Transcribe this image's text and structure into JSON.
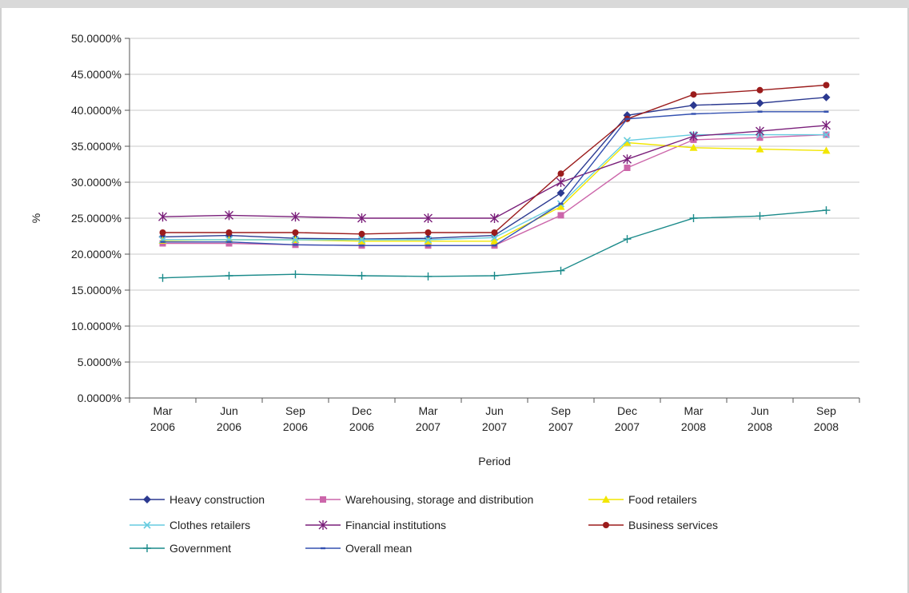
{
  "chart_data": {
    "type": "line",
    "title": "",
    "xlabel": "Period",
    "ylabel": "%",
    "ylim": [
      0,
      50
    ],
    "yticks": [
      "0.0000%",
      "5.0000%",
      "10.0000%",
      "15.0000%",
      "20.0000%",
      "25.0000%",
      "30.0000%",
      "35.0000%",
      "40.0000%",
      "45.0000%",
      "50.0000%"
    ],
    "categories": [
      [
        "Mar",
        "2006"
      ],
      [
        "Jun",
        "2006"
      ],
      [
        "Sep",
        "2006"
      ],
      [
        "Dec",
        "2006"
      ],
      [
        "Mar",
        "2007"
      ],
      [
        "Jun",
        "2007"
      ],
      [
        "Sep",
        "2007"
      ],
      [
        "Dec",
        "2007"
      ],
      [
        "Mar",
        "2008"
      ],
      [
        "Jun",
        "2008"
      ],
      [
        "Sep",
        "2008"
      ]
    ],
    "grid": true,
    "legend_position": "bottom",
    "series": [
      {
        "name": "Heavy construction",
        "color": "#2b3990",
        "marker": "diamond",
        "values": [
          22.4,
          22.6,
          22.2,
          22.1,
          22.2,
          22.6,
          28.5,
          39.3,
          40.7,
          41.0,
          41.8
        ]
      },
      {
        "name": "Warehousing, storage and distribution",
        "color": "#cc66aa",
        "marker": "square",
        "values": [
          21.5,
          21.5,
          21.3,
          21.2,
          21.2,
          21.2,
          25.4,
          32.0,
          35.9,
          36.2,
          36.6
        ]
      },
      {
        "name": "Food retailers",
        "color": "#f2e600",
        "marker": "triangle",
        "values": [
          21.9,
          22.0,
          22.0,
          21.8,
          21.8,
          21.8,
          26.6,
          35.5,
          34.8,
          34.6,
          34.4
        ]
      },
      {
        "name": "Clothes retailers",
        "color": "#66cce0",
        "marker": "x",
        "values": [
          22.0,
          22.0,
          22.0,
          22.0,
          22.0,
          22.3,
          27.0,
          35.8,
          36.6,
          36.6,
          36.6
        ]
      },
      {
        "name": "Financial institutions",
        "color": "#7a1f7a",
        "marker": "star",
        "values": [
          25.2,
          25.4,
          25.2,
          25.0,
          25.0,
          25.0,
          30.0,
          33.2,
          36.4,
          37.1,
          37.9
        ]
      },
      {
        "name": "Business services",
        "color": "#9b1c1c",
        "marker": "circle",
        "values": [
          23.0,
          23.0,
          23.0,
          22.8,
          23.0,
          23.0,
          31.2,
          38.8,
          42.2,
          42.8,
          43.5
        ]
      },
      {
        "name": "Government",
        "color": "#1a8a8a",
        "marker": "plus",
        "values": [
          16.7,
          17.0,
          17.2,
          17.0,
          16.9,
          17.0,
          17.7,
          22.1,
          25.0,
          25.3,
          26.1
        ]
      },
      {
        "name": "Overall mean",
        "color": "#3350b0",
        "marker": "dash",
        "values": [
          21.7,
          21.7,
          21.3,
          21.2,
          21.2,
          21.2,
          27.0,
          38.8,
          39.5,
          39.8,
          39.8
        ]
      }
    ]
  }
}
